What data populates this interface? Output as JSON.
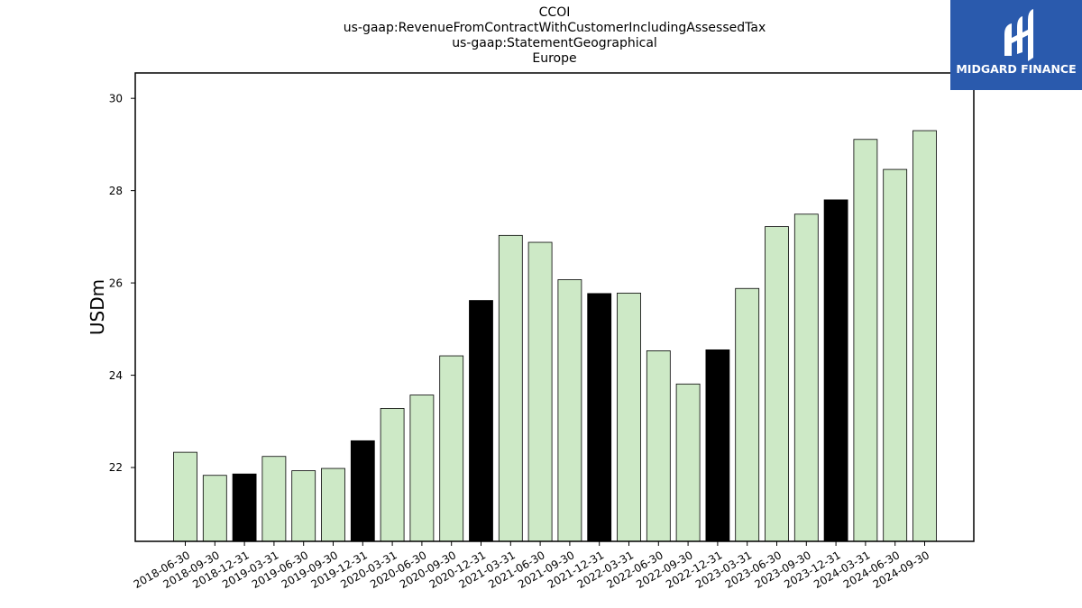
{
  "logo": {
    "text": "MIDGARD FINANCE"
  },
  "chart_data": {
    "type": "bar",
    "title_lines": [
      "CCOI",
      "us-gaap:RevenueFromContractWithCustomerIncludingAssessedTax",
      "us-gaap:StatementGeographical",
      "Europe"
    ],
    "xlabel": "",
    "ylabel": "USDm",
    "ylim": [
      20.4,
      30.55
    ],
    "yticks": [
      22,
      24,
      26,
      28,
      30
    ],
    "grid": false,
    "colors": {
      "quarter": "#cde9c6",
      "year_end": "#000000",
      "edge": "#000000"
    },
    "categories": [
      "2018-06-30",
      "2018-09-30",
      "2018-12-31",
      "2019-03-31",
      "2019-06-30",
      "2019-09-30",
      "2019-12-31",
      "2020-03-31",
      "2020-06-30",
      "2020-09-30",
      "2020-12-31",
      "2021-03-31",
      "2021-06-30",
      "2021-09-30",
      "2021-12-31",
      "2022-03-31",
      "2022-06-30",
      "2022-09-30",
      "2022-12-31",
      "2023-03-31",
      "2023-06-30",
      "2023-09-30",
      "2023-12-31",
      "2024-03-31",
      "2024-06-30",
      "2024-09-30"
    ],
    "values": [
      22.33,
      21.83,
      21.86,
      22.24,
      21.93,
      21.98,
      22.58,
      23.28,
      23.57,
      24.42,
      25.62,
      27.03,
      26.88,
      26.07,
      25.77,
      25.78,
      24.53,
      23.81,
      24.55,
      25.88,
      27.22,
      27.49,
      27.8,
      29.11,
      28.46,
      29.3
    ],
    "highlight": [
      false,
      false,
      true,
      false,
      false,
      false,
      true,
      false,
      false,
      false,
      true,
      false,
      false,
      false,
      true,
      false,
      false,
      false,
      true,
      false,
      false,
      false,
      true,
      false,
      false,
      false
    ]
  }
}
